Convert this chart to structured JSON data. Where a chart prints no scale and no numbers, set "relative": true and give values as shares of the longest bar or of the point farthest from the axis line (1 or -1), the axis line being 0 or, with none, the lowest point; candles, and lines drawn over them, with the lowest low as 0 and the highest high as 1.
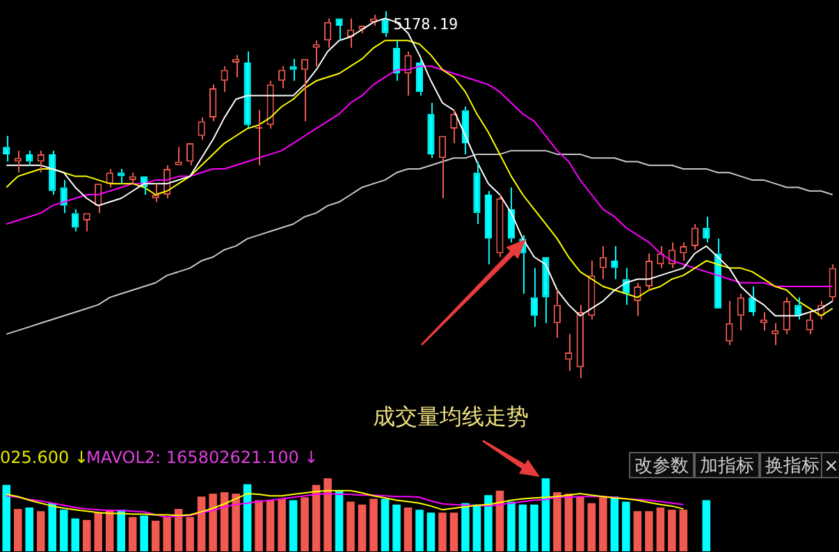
{
  "chart_data": [
    {
      "type": "candlestick",
      "relative": true,
      "tick_labels": false,
      "categories": [
        null,
        null,
        null,
        null,
        null,
        null,
        null,
        null,
        null,
        null,
        null,
        null,
        null,
        null,
        null,
        null,
        null,
        null,
        null,
        null,
        null,
        null,
        null,
        null,
        null,
        null,
        null,
        null,
        null,
        null,
        null,
        null,
        null,
        null,
        null,
        null,
        null,
        null,
        null,
        null,
        null,
        null,
        null,
        null,
        null,
        null,
        null,
        null,
        null,
        null,
        null,
        null,
        null,
        null,
        null,
        null,
        null,
        null,
        null,
        null,
        null,
        null,
        null,
        null,
        null,
        null,
        null,
        null,
        null,
        null,
        null,
        null,
        null
      ],
      "ohlc": [
        [
          0.63,
          0.66,
          0.59,
          0.61
        ],
        [
          0.59,
          0.62,
          0.56,
          0.6
        ],
        [
          0.61,
          0.62,
          0.58,
          0.59
        ],
        [
          0.59,
          0.62,
          0.56,
          0.61
        ],
        [
          0.61,
          0.62,
          0.5,
          0.51
        ],
        [
          0.52,
          0.54,
          0.45,
          0.47
        ],
        [
          0.45,
          0.46,
          0.4,
          0.41
        ],
        [
          0.43,
          0.45,
          0.4,
          0.45
        ],
        [
          0.47,
          0.53,
          0.45,
          0.53
        ],
        [
          0.53,
          0.57,
          0.52,
          0.56
        ],
        [
          0.56,
          0.57,
          0.53,
          0.55
        ],
        [
          0.54,
          0.56,
          0.53,
          0.55
        ],
        [
          0.55,
          0.55,
          0.5,
          0.52
        ],
        [
          0.49,
          0.53,
          0.48,
          0.5
        ],
        [
          0.5,
          0.58,
          0.49,
          0.57
        ],
        [
          0.58,
          0.63,
          0.58,
          0.59
        ],
        [
          0.59,
          0.64,
          0.58,
          0.64
        ],
        [
          0.66,
          0.71,
          0.65,
          0.7
        ],
        [
          0.71,
          0.8,
          0.7,
          0.79
        ],
        [
          0.81,
          0.85,
          0.78,
          0.84
        ],
        [
          0.86,
          0.88,
          0.82,
          0.87
        ],
        [
          0.86,
          0.89,
          0.68,
          0.69
        ],
        [
          0.68,
          0.73,
          0.58,
          0.68
        ],
        [
          0.69,
          0.81,
          0.68,
          0.8
        ],
        [
          0.81,
          0.85,
          0.79,
          0.84
        ],
        [
          0.85,
          0.87,
          0.81,
          0.84
        ],
        [
          0.84,
          0.87,
          0.7,
          0.87
        ],
        [
          0.9,
          0.92,
          0.85,
          0.91
        ],
        [
          0.92,
          0.98,
          0.9,
          0.97
        ],
        [
          0.98,
          0.98,
          0.92,
          0.96
        ],
        [
          0.93,
          0.98,
          0.9,
          0.95
        ],
        [
          0.95,
          0.96,
          0.94,
          0.96
        ],
        [
          0.97,
          0.99,
          0.96,
          0.98
        ],
        [
          0.98,
          1,
          0.93,
          0.94
        ],
        [
          0.9,
          0.92,
          0.81,
          0.83
        ],
        [
          0.83,
          0.89,
          0.77,
          0.88
        ],
        [
          0.86,
          0.87,
          0.77,
          0.78
        ],
        [
          0.72,
          0.75,
          0.6,
          0.61
        ],
        [
          0.6,
          0.66,
          0.49,
          0.66
        ],
        [
          0.68,
          0.73,
          0.64,
          0.72
        ],
        [
          0.73,
          0.74,
          0.61,
          0.64
        ],
        [
          0.56,
          0.59,
          0.42,
          0.45
        ],
        [
          0.5,
          0.51,
          0.31,
          0.38
        ],
        [
          0.34,
          0.5,
          0.33,
          0.49
        ],
        [
          0.46,
          0.52,
          0.37,
          0.38
        ],
        [
          0.38,
          0.39,
          0.23,
          0.34
        ],
        [
          0.22,
          0.3,
          0.14,
          0.17
        ],
        [
          0.33,
          0.33,
          0.15,
          0.22
        ],
        [
          0.15,
          0.24,
          0.11,
          0.2
        ],
        [
          0.05,
          0.12,
          0.02,
          0.07
        ],
        [
          0.03,
          0.2,
          0,
          0.18
        ],
        [
          0.17,
          0.32,
          0.16,
          0.28
        ],
        [
          0.3,
          0.36,
          0.27,
          0.33
        ],
        [
          0.32,
          0.36,
          0.27,
          0.3
        ],
        [
          0.27,
          0.3,
          0.2,
          0.23
        ],
        [
          0.21,
          0.26,
          0.17,
          0.25
        ],
        [
          0.25,
          0.34,
          0.24,
          0.32
        ],
        [
          0.31,
          0.36,
          0.3,
          0.34
        ],
        [
          0.31,
          0.37,
          0.3,
          0.35
        ],
        [
          0.34,
          0.37,
          0.32,
          0.36
        ],
        [
          0.36,
          0.42,
          0.35,
          0.41
        ],
        [
          0.41,
          0.44,
          0.37,
          0.38
        ],
        [
          0.34,
          0.38,
          0.19,
          0.19
        ],
        [
          0.1,
          0.21,
          0.09,
          0.15
        ],
        [
          0.17,
          0.23,
          0.13,
          0.22
        ],
        [
          0.22,
          0.25,
          0.17,
          0.18
        ],
        [
          0.15,
          0.18,
          0.13,
          0.16
        ],
        [
          0.12,
          0.15,
          0.09,
          0.13
        ],
        [
          0.13,
          0.22,
          0.12,
          0.21
        ],
        [
          0.2,
          0.22,
          0.16,
          0.17
        ],
        [
          0.13,
          0.18,
          0.12,
          0.16
        ],
        [
          0.17,
          0.21,
          0.16,
          0.2
        ],
        [
          0.22,
          0.31,
          0.21,
          0.3
        ]
      ],
      "colors": [
        "#00ffff",
        "#f05a50",
        "#00ffff",
        "#f05a50",
        "#00ffff",
        "#00ffff",
        "#00ffff",
        "#f05a50",
        "#f05a50",
        "#f05a50",
        "#00ffff",
        "#f05a50",
        "#00ffff",
        "#f05a50",
        "#f05a50",
        "#f05a50",
        "#f05a50",
        "#f05a50",
        "#f05a50",
        "#f05a50",
        "#f05a50",
        "#00ffff",
        "#f05a50",
        "#f05a50",
        "#f05a50",
        "#00ffff",
        "#f05a50",
        "#f05a50",
        "#f05a50",
        "#00ffff",
        "#f05a50",
        "#f05a50",
        "#f05a50",
        "#00ffff",
        "#00ffff",
        "#f05a50",
        "#00ffff",
        "#00ffff",
        "#f05a50",
        "#f05a50",
        "#00ffff",
        "#00ffff",
        "#00ffff",
        "#f05a50",
        "#00ffff",
        "#00ffff",
        "#00ffff",
        "#00ffff",
        "#f05a50",
        "#f05a50",
        "#f05a50",
        "#f05a50",
        "#f05a50",
        "#00ffff",
        "#00ffff",
        "#f05a50",
        "#f05a50",
        "#f05a50",
        "#f05a50",
        "#f05a50",
        "#f05a50",
        "#00ffff",
        "#00ffff",
        "#f05a50",
        "#f05a50",
        "#00ffff",
        "#f05a50",
        "#f05a50",
        "#f05a50",
        "#00ffff",
        "#f05a50",
        "#f05a50",
        "#f05a50"
      ],
      "series": [
        {
          "type": "line",
          "color": "#ffffff",
          "values": [
            0.58,
            0.58,
            0.58,
            0.58,
            0.57,
            0.56,
            0.52,
            0.49,
            0.47,
            0.48,
            0.49,
            0.51,
            0.53,
            0.53,
            0.53,
            0.54,
            0.55,
            0.6,
            0.65,
            0.71,
            0.76,
            0.77,
            0.77,
            0.77,
            0.77,
            0.77,
            0.8,
            0.84,
            0.89,
            0.92,
            0.93,
            0.95,
            0.97,
            0.98,
            0.97,
            0.94,
            0.88,
            0.81,
            0.75,
            0.73,
            0.66,
            0.59,
            0.53,
            0.5,
            0.45,
            0.38,
            0.33,
            0.31,
            0.24,
            0.2,
            0.17,
            0.19,
            0.21,
            0.24,
            0.26,
            0.27,
            0.27,
            0.28,
            0.29,
            0.3,
            0.34,
            0.36,
            0.33,
            0.3,
            0.25,
            0.22,
            0.2,
            0.17,
            0.17,
            0.17,
            0.18,
            0.19,
            0.21
          ]
        },
        {
          "type": "line",
          "color": "#ffff00",
          "values": [
            0.52,
            0.55,
            0.56,
            0.57,
            0.57,
            0.56,
            0.55,
            0.55,
            0.54,
            0.53,
            0.53,
            0.53,
            0.52,
            0.5,
            0.51,
            0.53,
            0.55,
            0.58,
            0.61,
            0.64,
            0.66,
            0.68,
            0.69,
            0.71,
            0.74,
            0.76,
            0.79,
            0.81,
            0.82,
            0.83,
            0.85,
            0.87,
            0.9,
            0.92,
            0.92,
            0.92,
            0.91,
            0.88,
            0.84,
            0.82,
            0.78,
            0.72,
            0.67,
            0.61,
            0.55,
            0.5,
            0.46,
            0.42,
            0.38,
            0.33,
            0.29,
            0.27,
            0.25,
            0.24,
            0.23,
            0.22,
            0.24,
            0.25,
            0.27,
            0.28,
            0.3,
            0.32,
            0.31,
            0.3,
            0.3,
            0.29,
            0.27,
            0.25,
            0.24,
            0.21,
            0.19,
            0.17,
            0.19
          ]
        },
        {
          "type": "line",
          "color": "#ff00ff",
          "values": [
            0.42,
            0.43,
            0.44,
            0.45,
            0.47,
            0.48,
            0.49,
            0.5,
            0.5,
            0.51,
            0.52,
            0.53,
            0.53,
            0.54,
            0.54,
            0.55,
            0.55,
            0.56,
            0.57,
            0.57,
            0.58,
            0.59,
            0.6,
            0.61,
            0.62,
            0.64,
            0.66,
            0.68,
            0.7,
            0.72,
            0.75,
            0.77,
            0.8,
            0.82,
            0.84,
            0.84,
            0.85,
            0.85,
            0.84,
            0.83,
            0.82,
            0.81,
            0.8,
            0.78,
            0.75,
            0.72,
            0.7,
            0.66,
            0.62,
            0.59,
            0.54,
            0.5,
            0.46,
            0.44,
            0.41,
            0.39,
            0.37,
            0.34,
            0.32,
            0.31,
            0.3,
            0.29,
            0.28,
            0.27,
            0.26,
            0.26,
            0.26,
            0.25,
            0.25,
            0.25,
            0.25,
            0.25,
            0.25
          ]
        },
        {
          "type": "line",
          "color": "#c8c8c8",
          "values": [
            0.12,
            0.13,
            0.14,
            0.15,
            0.16,
            0.17,
            0.18,
            0.19,
            0.2,
            0.22,
            0.23,
            0.24,
            0.25,
            0.26,
            0.28,
            0.29,
            0.3,
            0.32,
            0.33,
            0.35,
            0.36,
            0.38,
            0.39,
            0.4,
            0.41,
            0.42,
            0.44,
            0.45,
            0.47,
            0.48,
            0.5,
            0.52,
            0.53,
            0.54,
            0.56,
            0.57,
            0.57,
            0.58,
            0.59,
            0.6,
            0.6,
            0.61,
            0.61,
            0.61,
            0.62,
            0.62,
            0.62,
            0.62,
            0.61,
            0.61,
            0.61,
            0.6,
            0.6,
            0.6,
            0.59,
            0.59,
            0.58,
            0.58,
            0.58,
            0.57,
            0.57,
            0.57,
            0.56,
            0.56,
            0.55,
            0.54,
            0.54,
            0.53,
            0.52,
            0.52,
            0.51,
            0.51,
            0.5
          ]
        }
      ],
      "annotations": [
        "5178.19",
        "成交量均线走势"
      ]
    },
    {
      "type": "bar",
      "relative": true,
      "tick_labels": false,
      "categories": [
        null,
        null,
        null,
        null,
        null,
        null,
        null,
        null,
        null,
        null,
        null,
        null,
        null,
        null,
        null,
        null,
        null,
        null,
        null,
        null,
        null,
        null,
        null,
        null,
        null,
        null,
        null,
        null,
        null,
        null,
        null,
        null,
        null,
        null,
        null,
        null,
        null,
        null,
        null,
        null,
        null,
        null,
        null,
        null,
        null,
        null,
        null,
        null,
        null,
        null,
        null,
        null,
        null,
        null,
        null,
        null,
        null,
        null,
        null,
        null,
        null,
        null,
        null,
        null,
        null,
        null,
        null,
        null,
        null,
        null,
        null,
        null,
        null
      ],
      "series": [
        {
          "type": "bar",
          "values": [
            0.91,
            0.58,
            0.6,
            0.55,
            0.66,
            0.57,
            0.45,
            0.43,
            0.53,
            0.57,
            0.57,
            0.47,
            0.49,
            0.42,
            0.47,
            0.58,
            0.47,
            0.75,
            0.79,
            0.81,
            0.79,
            0.92,
            0.7,
            0.7,
            0.72,
            0.7,
            0.74,
            0.91,
            1,
            0.83,
            0.68,
            0.64,
            0.72,
            0.72,
            0.64,
            0.6,
            0.57,
            0.53,
            0.53,
            0.53,
            0.66,
            0.64,
            0.77,
            0.83,
            0.68,
            0.64,
            0.64,
            1,
            0.81,
            0.79,
            0.75,
            0.66,
            0.75,
            0.75,
            0.68,
            0.55,
            0.55,
            0.6,
            0.57,
            0.57,
            null,
            0.7,
            null,
            null,
            null,
            null,
            null,
            null,
            null,
            null,
            null,
            null,
            null
          ],
          "colors": [
            "#00ffff",
            "#f05a50",
            "#00ffff",
            "#f05a50",
            "#00ffff",
            "#00ffff",
            "#00ffff",
            "#f05a50",
            "#f05a50",
            "#f05a50",
            "#00ffff",
            "#f05a50",
            "#00ffff",
            "#f05a50",
            "#f05a50",
            "#f05a50",
            "#f05a50",
            "#f05a50",
            "#f05a50",
            "#f05a50",
            "#f05a50",
            "#00ffff",
            "#f05a50",
            "#f05a50",
            "#f05a50",
            "#00ffff",
            "#f05a50",
            "#f05a50",
            "#f05a50",
            "#00ffff",
            "#f05a50",
            "#f05a50",
            "#f05a50",
            "#00ffff",
            "#00ffff",
            "#f05a50",
            "#00ffff",
            "#00ffff",
            "#f05a50",
            "#f05a50",
            "#00ffff",
            "#00ffff",
            "#00ffff",
            "#f05a50",
            "#00ffff",
            "#00ffff",
            "#00ffff",
            "#00ffff",
            "#f05a50",
            "#f05a50",
            "#f05a50",
            "#f05a50",
            "#f05a50",
            "#00ffff",
            "#00ffff",
            "#f05a50",
            "#f05a50",
            "#f05a50",
            "#f05a50",
            "#f05a50",
            "#f05a50",
            "#00ffff",
            "#00ffff",
            "#f05a50",
            "#f05a50",
            "#00ffff",
            "#f05a50",
            "#f05a50",
            "#f05a50",
            "#00ffff",
            "#f05a50",
            "#f05a50",
            "#f05a50"
          ]
        },
        {
          "type": "line",
          "color": "#ffff00",
          "values": [
            0.78,
            0.75,
            0.7,
            0.66,
            0.62,
            0.59,
            0.57,
            0.55,
            0.53,
            0.52,
            0.52,
            0.51,
            0.51,
            0.5,
            0.5,
            0.49,
            0.5,
            0.54,
            0.59,
            0.65,
            0.72,
            0.79,
            0.78,
            0.76,
            0.76,
            0.78,
            0.8,
            0.82,
            0.83,
            0.83,
            0.83,
            0.8,
            0.76,
            0.73,
            0.7,
            0.68,
            0.66,
            0.62,
            0.57,
            0.59,
            0.61,
            0.63,
            0.64,
            0.67,
            0.7,
            0.72,
            0.73,
            0.74,
            0.75,
            0.77,
            0.79,
            0.77,
            0.75,
            0.73,
            0.72,
            0.7,
            0.67,
            0.64,
            0.62,
            0.58,
            null,
            null,
            null,
            null,
            null,
            null,
            null,
            null,
            null,
            null,
            null,
            null,
            null
          ]
        },
        {
          "type": "line",
          "color": "#ff00ff",
          "values": [
            0.76,
            0.74,
            0.71,
            0.69,
            0.66,
            0.63,
            0.6,
            0.58,
            0.57,
            0.56,
            0.56,
            0.55,
            0.54,
            0.5,
            0.47,
            0.48,
            0.49,
            0.53,
            0.56,
            0.61,
            0.64,
            0.66,
            0.68,
            0.7,
            0.72,
            0.74,
            0.76,
            0.78,
            0.79,
            0.78,
            0.78,
            0.77,
            0.77,
            0.76,
            0.75,
            0.75,
            0.74,
            0.69,
            0.65,
            0.64,
            0.63,
            0.63,
            0.62,
            0.64,
            0.66,
            0.68,
            0.7,
            0.71,
            0.74,
            0.74,
            0.75,
            0.75,
            0.75,
            0.74,
            0.72,
            0.71,
            0.7,
            0.68,
            0.66,
            0.64,
            null,
            null,
            null,
            null,
            null,
            null,
            null,
            null,
            null,
            null,
            null,
            null,
            null
          ]
        }
      ],
      "annotations": [
        "025.600 ↓",
        "MAVOL2: 165802621.100 ↓",
        "改参数",
        "加指标",
        "换指标",
        "×"
      ]
    }
  ]
}
